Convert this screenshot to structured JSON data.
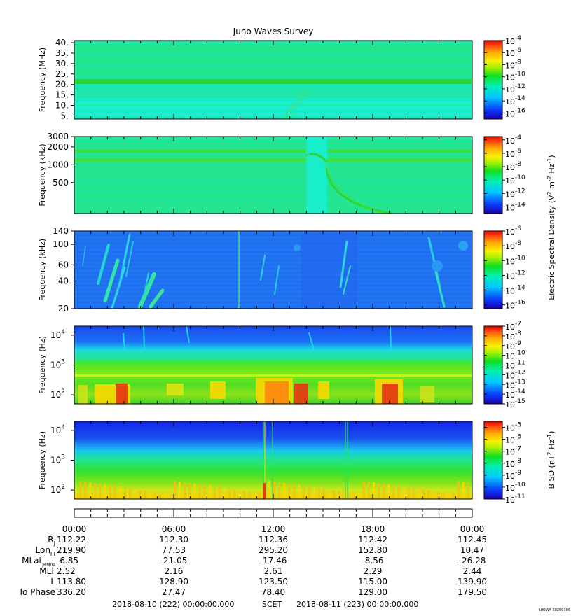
{
  "colors": {
    "background_green": "#22e68f",
    "background_cyan": "#18eed0",
    "background_blue": "#1f70f0",
    "burst_yellow": "#f5d800",
    "burst_red": "#e53a10"
  },
  "chart_data": {
    "type": "heatmap",
    "title": "Juno Waves Survey",
    "x_axis": {
      "kind": "time",
      "start": "2018-08-10 00:00",
      "end": "2018-08-11 00:00",
      "tick_labels": [
        "00:00",
        "06:00",
        "12:00",
        "18:00",
        "00:00"
      ],
      "tick_hours": [
        0,
        6,
        12,
        18,
        24
      ],
      "minor_tick_step_hours": 1
    },
    "panels": [
      {
        "ylabel": "Frequency (MHz)",
        "yscale": "linear",
        "ylim": [
          3.5,
          41
        ],
        "yticks": [
          5,
          10,
          15,
          20,
          25,
          30,
          35,
          40
        ],
        "yticklabels": [
          "5.",
          "10.",
          "15.",
          "20.",
          "25.",
          "30.",
          "35.",
          "40."
        ],
        "colorbar_exponents": [
          "-4",
          "-6",
          "-8",
          "-10",
          "-12",
          "-14",
          "-16"
        ],
        "colorbar_range_exp": [
          -17,
          -4
        ],
        "colorbar_label": ""
      },
      {
        "ylabel": "Frequency (kHz)",
        "yscale": "log",
        "ylim": [
          150,
          3000
        ],
        "yticks": [
          500,
          1000,
          2000,
          3000
        ],
        "yticklabels": [
          "500",
          "1000",
          "2000",
          "3000"
        ],
        "colorbar_exponents": [
          "-4",
          "-6",
          "-8",
          "-10",
          "-12",
          "-14"
        ],
        "colorbar_range_exp": [
          -15,
          -3.5
        ],
        "colorbar_label": ""
      },
      {
        "ylabel": "Frequency (kHz)",
        "yscale": "log",
        "ylim": [
          20,
          140
        ],
        "yticks": [
          20,
          40,
          60,
          100,
          140
        ],
        "yticklabels": [
          "20",
          "40",
          "60",
          "100",
          "140"
        ],
        "colorbar_exponents": [
          "-6",
          "-8",
          "-10",
          "-12",
          "-14",
          "-16"
        ],
        "colorbar_range_exp": [
          -16.5,
          -6
        ],
        "colorbar_label": ""
      },
      {
        "ylabel": "Frequency (Hz)",
        "yscale": "log",
        "ylim": [
          50,
          20000
        ],
        "yticks": [
          100,
          1000,
          10000
        ],
        "yticklabels": [
          "10",
          "10",
          "10"
        ],
        "ytickexps": [
          "2",
          "3",
          "4"
        ],
        "colorbar_exponents": [
          "-7",
          "-8",
          "-9",
          "-10",
          "-11",
          "-12",
          "-13",
          "-14",
          "-15"
        ],
        "colorbar_range_exp": [
          -15,
          -7
        ],
        "colorbar_label": ""
      },
      {
        "ylabel": "Frequency (Hz)",
        "yscale": "log",
        "ylim": [
          50,
          20000
        ],
        "yticks": [
          100,
          1000,
          10000
        ],
        "yticklabels": [
          "10",
          "10",
          "10"
        ],
        "ytickexps": [
          "2",
          "3",
          "4"
        ],
        "colorbar_exponents": [
          "-5",
          "-6",
          "-7",
          "-8",
          "-9",
          "-10",
          "-11"
        ],
        "colorbar_range_exp": [
          -11,
          -4.5
        ],
        "colorbar_label": ""
      }
    ],
    "colorbar_labels": {
      "electric": "Electric Spectral Density (V",
      "electric_sup1": "2",
      "electric_mid": " m",
      "electric_sup2": "-2",
      "electric_mid2": " Hz",
      "electric_sup3": "-1",
      "electric_end": ")",
      "magnetic": "B SD (nT",
      "magnetic_sup1": "2",
      "magnetic_mid": " Hz",
      "magnetic_sup2": "-1",
      "magnetic_end": ")"
    },
    "ephemeris": {
      "rows": [
        {
          "label": "R",
          "sub": "J",
          "values": [
            "112.22",
            "112.30",
            "112.36",
            "112.42",
            "112.45"
          ]
        },
        {
          "label": "Lon",
          "sub": "III",
          "values": [
            "219.90",
            "77.53",
            "295.20",
            "152.80",
            "10.47"
          ]
        },
        {
          "label": "MLat",
          "sub": "JRM09",
          "values": [
            "-6.85",
            "-21.05",
            "-17.46",
            "-8.56",
            "-26.28"
          ]
        },
        {
          "label": "MLT",
          "sub": "",
          "values": [
            "2.52",
            "2.16",
            "2.61",
            "2.29",
            "2.44"
          ]
        },
        {
          "label": "L",
          "sub": "",
          "values": [
            "113.80",
            "128.90",
            "123.50",
            "115.00",
            "139.90"
          ]
        },
        {
          "label": "Io Phase",
          "sub": "",
          "values": [
            "336.20",
            "27.47",
            "78.40",
            "129.00",
            "179.50"
          ]
        }
      ]
    },
    "footer": {
      "start": "2018-08-10 (222) 00:00:00.000",
      "mid": "SCET",
      "end": "2018-08-11 (223) 00:00:00.000",
      "stamp": "UIOWA 20200306"
    }
  }
}
